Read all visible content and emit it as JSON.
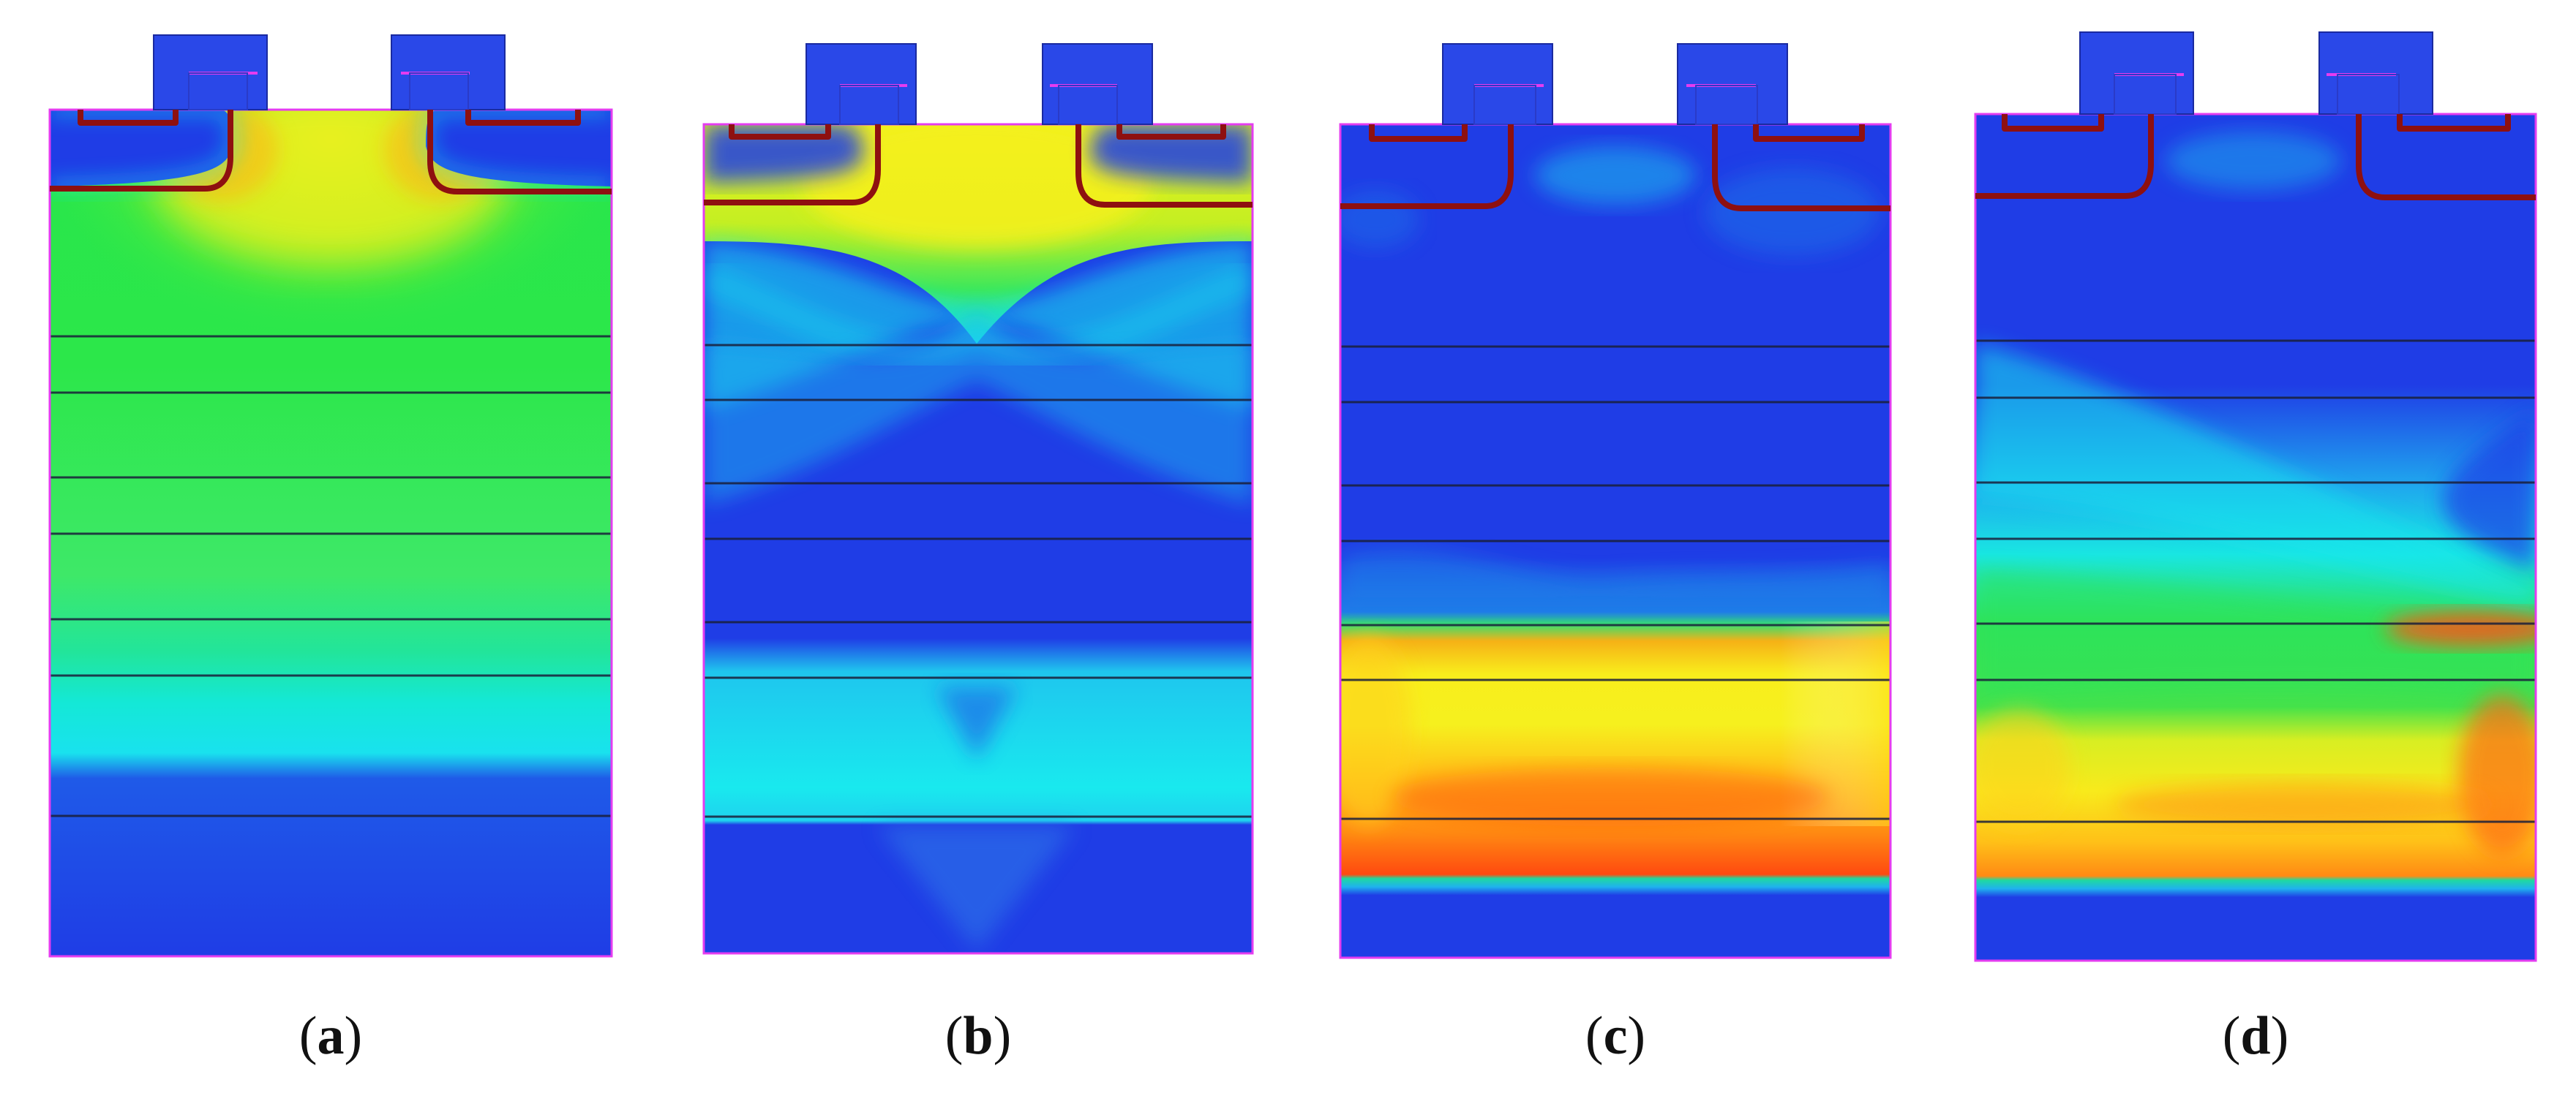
{
  "colors": {
    "oxide_blue": "#1f3de6",
    "metal_blue": "#2a48e8",
    "magenta": "#e43cf0",
    "junction_red": "#8e1010",
    "layer_line": "#1a1f3a",
    "cyan": "#19e6ee",
    "green": "#27e64c",
    "yellow": "#f5f01c",
    "orange": "#ff9a14",
    "red": "#ff3a10"
  },
  "panels": [
    {
      "id": "a",
      "caption_open": "(",
      "caption_letter": "a",
      "caption_close": ")"
    },
    {
      "id": "b",
      "caption_open": "(",
      "caption_letter": "b",
      "caption_close": ")"
    },
    {
      "id": "c",
      "caption_open": "(",
      "caption_letter": "c",
      "caption_close": ")"
    },
    {
      "id": "d",
      "caption_open": "(",
      "caption_letter": "d",
      "caption_close": ")"
    }
  ]
}
